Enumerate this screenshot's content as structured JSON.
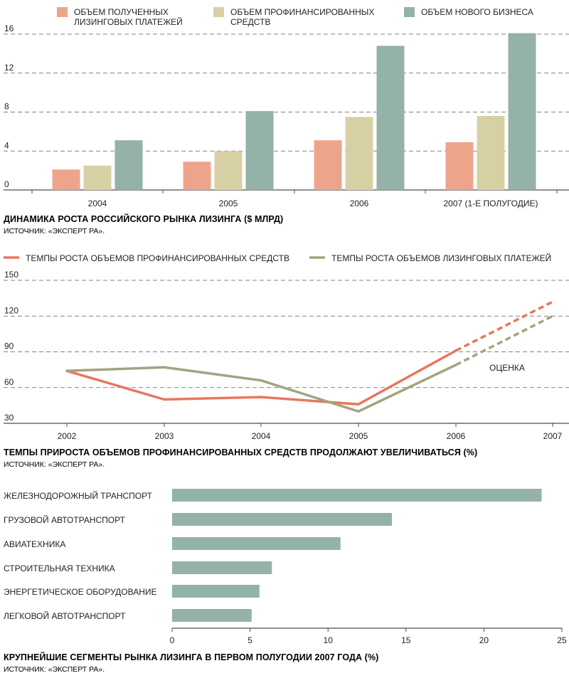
{
  "chart_data": [
    {
      "type": "bar",
      "title": "ДИНАМИКА РОСТА РОССИЙСКОГО РЫНКА ЛИЗИНГА ($ МЛРД)",
      "source": "ИСТОЧНИК: «ЭКСПЕРТ РА».",
      "categories": [
        "2004",
        "2005",
        "2006",
        "2007 (1-Е ПОЛУГОДИЕ)"
      ],
      "series": [
        {
          "name": "ОБЪЕМ ПОЛУЧЕННЫХ ЛИЗИНГОВЫХ ПЛАТЕЖЕЙ",
          "color": "#eea48b",
          "values": [
            2.1,
            2.9,
            5.1,
            4.9
          ]
        },
        {
          "name": "ОБЪЕМ ПРОФИНАНСИРОВАННЫХ СРЕДСТВ",
          "color": "#d8d0a5",
          "values": [
            2.5,
            4.0,
            7.5,
            7.6
          ]
        },
        {
          "name": "ОБЪЕМ НОВОГО БИЗНЕСА",
          "color": "#94b2a8",
          "values": [
            5.1,
            8.1,
            14.8,
            16.1
          ]
        }
      ],
      "yticks": [
        "16",
        "12",
        "8",
        "4",
        "0"
      ],
      "ytick_values": [
        16,
        12,
        8,
        4,
        0
      ],
      "ylim": [
        0,
        16
      ],
      "grid": true,
      "legend": "top"
    },
    {
      "type": "line",
      "title": "ТЕМПЫ ПРИРОСТА ОБЪЕМОВ ПРОФИНАНСИРОВАННЫХ СРЕДСТВ ПРОДОЛЖАЮТ УВЕЛИЧИВАТЬСЯ (%)",
      "source": "ИСТОЧНИК: «ЭКСПЕРТ РА».",
      "x": [
        "2002",
        "2003",
        "2004",
        "2005",
        "2006",
        "2007"
      ],
      "series": [
        {
          "name": "ТЕМПЫ РОСТА ОБЪЕМОВ ПРОФИНАНСИРОВАННЫХ СРЕДСТВ",
          "color": "#e87760",
          "values": [
            74,
            50,
            52,
            46,
            91,
            132
          ],
          "estimate_from_index": 4
        },
        {
          "name": "ТЕМПЫ РОСТА ОБЪЕМОВ ЛИЗИНГОВЫХ ПЛАТЕЖЕЙ",
          "color": "#a4a37f",
          "values": [
            74,
            77,
            66,
            40,
            79,
            120
          ],
          "estimate_from_index": 4
        }
      ],
      "annotation": "ОЦЕНКА",
      "yticks": [
        "150",
        "120",
        "90",
        "60",
        "30"
      ],
      "ytick_values": [
        150,
        120,
        90,
        60,
        30
      ],
      "ylim": [
        30,
        150
      ],
      "grid": true,
      "legend": "top"
    },
    {
      "type": "bar",
      "orientation": "horizontal",
      "title": "КРУПНЕЙШИЕ СЕГМЕНТЫ РЫНКА ЛИЗИНГА В ПЕРВОМ ПОЛУГОДИИ 2007 ГОДА (%)",
      "source": "ИСТОЧНИК: «ЭКСПЕРТ РА».",
      "categories": [
        "ЖЕЛЕЗНОДОРОЖНЫЙ ТРАНСПОРТ",
        "ГРУЗОВОЙ АВТОТРАНСПОРТ",
        "АВИАТЕХНИКА",
        "СТРОИТЕЛЬНАЯ ТЕХНИКА",
        "ЭНЕРГЕТИЧЕСКОЕ ОБОРУДОВАНИЕ",
        "ЛЕГКОВОЙ АВТОТРАНСПОРТ"
      ],
      "values": [
        23.7,
        14.1,
        10.8,
        6.4,
        5.6,
        5.1
      ],
      "color": "#94b2a8",
      "xticks": [
        "0",
        "5",
        "10",
        "15",
        "20",
        "25"
      ],
      "xtick_values": [
        0,
        5,
        10,
        15,
        20,
        25
      ],
      "xlim": [
        0,
        25
      ]
    }
  ]
}
